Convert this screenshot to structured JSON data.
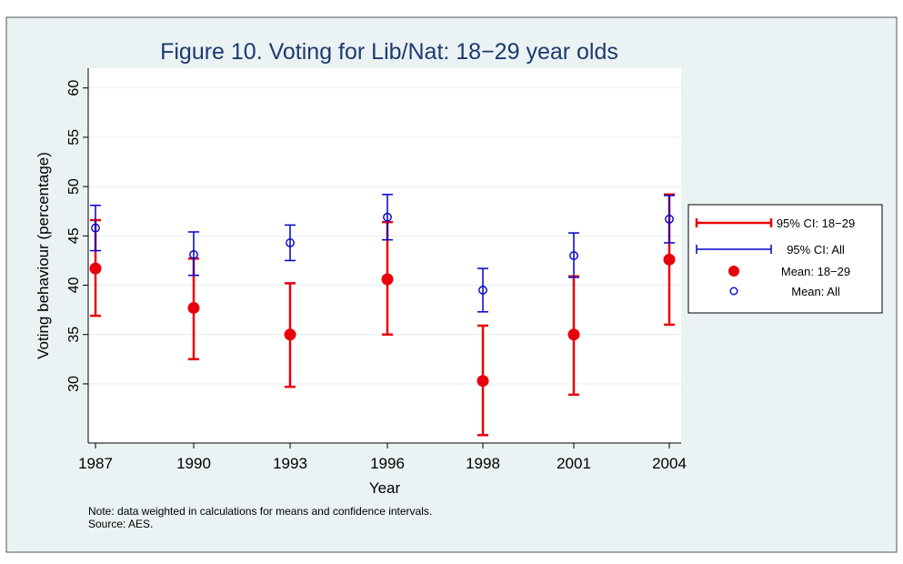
{
  "colors": {
    "background": "#eaf2f3",
    "plot_background": "#ffffff",
    "grid": "#e6eef0",
    "title": "#1e3a6e",
    "series_18_29": "#e8000b",
    "series_all": "#0000cc",
    "frame": "#555555",
    "text": "#000000"
  },
  "chart_data": {
    "type": "scatter",
    "title": "Figure 10. Voting for Lib/Nat: 18−29 year olds",
    "xlabel": "Year",
    "ylabel": "Voting behaviour (percentage)",
    "x_categories": [
      "1987",
      "1990",
      "1993",
      "1996",
      "1998",
      "2001",
      "2004"
    ],
    "ylim": [
      24,
      62
    ],
    "y_ticks": [
      30,
      35,
      40,
      45,
      50,
      55,
      60
    ],
    "y_tick_labels": [
      "30",
      "35",
      "40",
      "45",
      "50",
      "55",
      "60"
    ],
    "grid": true,
    "legend_position": "right",
    "series": [
      {
        "name": "Mean: 18−29",
        "kind": "mean",
        "marker": "filled-circle",
        "color": "#e8000b",
        "values": [
          41.7,
          37.7,
          35.0,
          40.6,
          30.3,
          35.0,
          42.6
        ]
      },
      {
        "name": "Mean: All",
        "kind": "mean",
        "marker": "hollow-circle",
        "color": "#0000cc",
        "values": [
          45.8,
          43.1,
          44.3,
          46.9,
          39.5,
          43.0,
          46.7
        ]
      },
      {
        "name": "95% CI: 18−29",
        "kind": "ci",
        "color": "#e8000b",
        "lower": [
          36.9,
          32.5,
          29.7,
          35.0,
          24.8,
          28.9,
          36.0
        ],
        "upper": [
          46.6,
          42.7,
          40.2,
          46.4,
          35.9,
          40.9,
          49.2
        ]
      },
      {
        "name": "95% CI: All",
        "kind": "ci",
        "color": "#0000cc",
        "lower": [
          43.5,
          41.0,
          42.5,
          44.6,
          37.3,
          40.8,
          44.3
        ],
        "upper": [
          48.1,
          45.4,
          46.1,
          49.2,
          41.7,
          45.3,
          49.1
        ]
      }
    ],
    "legend": [
      "95% CI: 18−29",
      "95% CI: All",
      "Mean: 18−29",
      "Mean: All"
    ],
    "notes": [
      "Note: data weighted in calculations for means and confidence intervals.",
      "Source: AES."
    ]
  }
}
